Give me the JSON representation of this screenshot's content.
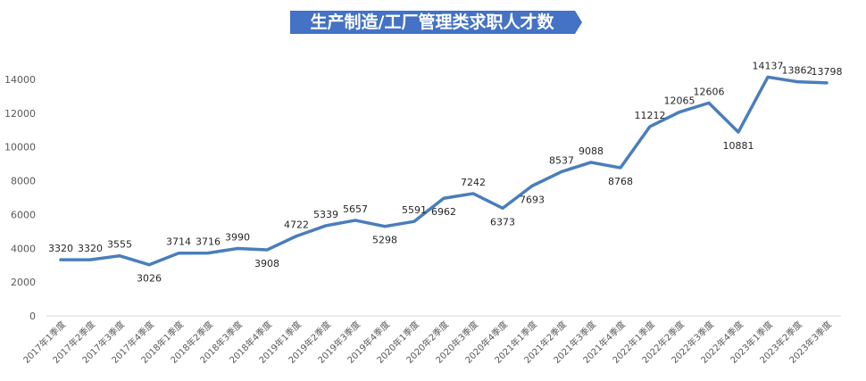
{
  "chart_data": {
    "type": "line",
    "title": "生产制造/工厂管理类求职人才数",
    "xlabel": "",
    "ylabel": "",
    "ylim": [
      0,
      14000
    ],
    "yticks": [
      0,
      2000,
      4000,
      6000,
      8000,
      10000,
      12000,
      14000
    ],
    "grid": false,
    "legend": "none",
    "colors": {
      "line": "#4a7ebb",
      "title_bg": "#4472c4",
      "title_text": "#ffffff"
    },
    "categories": [
      "2017年1季度",
      "2017年2季度",
      "2017年3季度",
      "2017年4季度",
      "2018年1季度",
      "2018年2季度",
      "2018年3季度",
      "2018年4季度",
      "2019年1季度",
      "2019年2季度",
      "2019年3季度",
      "2019年4季度",
      "2020年1季度",
      "2020年2季度",
      "2020年3季度",
      "2020年4季度",
      "2021年1季度",
      "2021年2季度",
      "2021年3季度",
      "2021年4季度",
      "2022年1季度",
      "2022年2季度",
      "2022年3季度",
      "2022年4季度",
      "2023年1季度",
      "2023年2季度",
      "2023年3季度"
    ],
    "series": [
      {
        "values": [
          3320,
          3320,
          3555,
          3026,
          3714,
          3716,
          3990,
          3908,
          4722,
          5339,
          5657,
          5298,
          5591,
          6962,
          7242,
          6373,
          7693,
          8537,
          9088,
          8768,
          11212,
          12065,
          12606,
          10881,
          14137,
          13862,
          13798
        ],
        "label_pos": [
          "above",
          "above",
          "above",
          "below",
          "above",
          "above",
          "above",
          "below",
          "above",
          "above",
          "above",
          "below",
          "above",
          "below",
          "above",
          "below",
          "below",
          "above",
          "above",
          "below",
          "above",
          "above",
          "above",
          "below",
          "above",
          "above",
          "above"
        ]
      }
    ]
  }
}
